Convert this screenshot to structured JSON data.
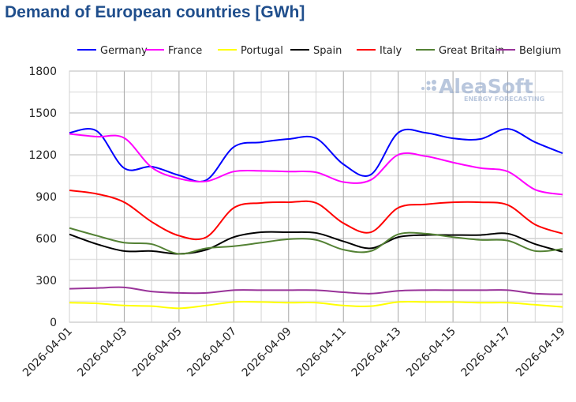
{
  "chart_data": {
    "type": "line",
    "title": "Demand of European countries [GWh]",
    "xlabel": "",
    "ylabel": "",
    "ylim": [
      0,
      1800
    ],
    "yticks": [
      0,
      300,
      600,
      900,
      1200,
      1500,
      1800
    ],
    "x": [
      "2026-04-01",
      "2026-04-02",
      "2026-04-03",
      "2026-04-04",
      "2026-04-05",
      "2026-04-06",
      "2026-04-07",
      "2026-04-08",
      "2026-04-09",
      "2026-04-10",
      "2026-04-11",
      "2026-04-12",
      "2026-04-13",
      "2026-04-14",
      "2026-04-15",
      "2026-04-16",
      "2026-04-17",
      "2026-04-18",
      "2026-04-19"
    ],
    "xtick_labels": [
      "2026-04-01",
      "2026-04-03",
      "2026-04-05",
      "2026-04-07",
      "2026-04-09",
      "2026-04-11",
      "2026-04-13",
      "2026-04-15",
      "2026-04-17",
      "2026-04-19"
    ],
    "grid": true,
    "legend_position": "top",
    "series": [
      {
        "name": "Germany",
        "color": "#0000ff",
        "values": [
          1358,
          1370,
          1104,
          1115,
          1053,
          1019,
          1256,
          1290,
          1313,
          1318,
          1132,
          1058,
          1358,
          1358,
          1318,
          1313,
          1386,
          1290,
          1211
        ]
      },
      {
        "name": "France",
        "color": "#ff00ff",
        "values": [
          1350,
          1330,
          1320,
          1110,
          1030,
          1010,
          1080,
          1085,
          1080,
          1075,
          1005,
          1020,
          1200,
          1190,
          1145,
          1105,
          1080,
          950,
          915
        ]
      },
      {
        "name": "Portugal",
        "color": "#ffff00",
        "values": [
          140,
          135,
          120,
          115,
          100,
          120,
          145,
          145,
          140,
          140,
          120,
          115,
          145,
          145,
          145,
          140,
          140,
          125,
          110
        ]
      },
      {
        "name": "Spain",
        "color": "#000000",
        "values": [
          630,
          560,
          510,
          510,
          490,
          520,
          610,
          645,
          645,
          640,
          580,
          530,
          610,
          625,
          625,
          625,
          635,
          560,
          505
        ]
      },
      {
        "name": "Italy",
        "color": "#ff0000",
        "values": [
          945,
          920,
          860,
          720,
          620,
          610,
          820,
          855,
          860,
          855,
          710,
          645,
          820,
          845,
          860,
          860,
          840,
          700,
          635
        ]
      },
      {
        "name": "Great Britain",
        "color": "#548235",
        "values": [
          675,
          620,
          570,
          560,
          490,
          530,
          545,
          570,
          595,
          590,
          520,
          510,
          630,
          635,
          610,
          590,
          585,
          510,
          525
        ]
      },
      {
        "name": "Belgium",
        "color": "#993399",
        "values": [
          240,
          245,
          250,
          220,
          210,
          210,
          230,
          230,
          230,
          230,
          215,
          205,
          225,
          230,
          230,
          230,
          230,
          205,
          200
        ]
      }
    ]
  },
  "watermark": {
    "brand": "AleaSoft",
    "tagline": "ENERGY FORECASTING"
  }
}
